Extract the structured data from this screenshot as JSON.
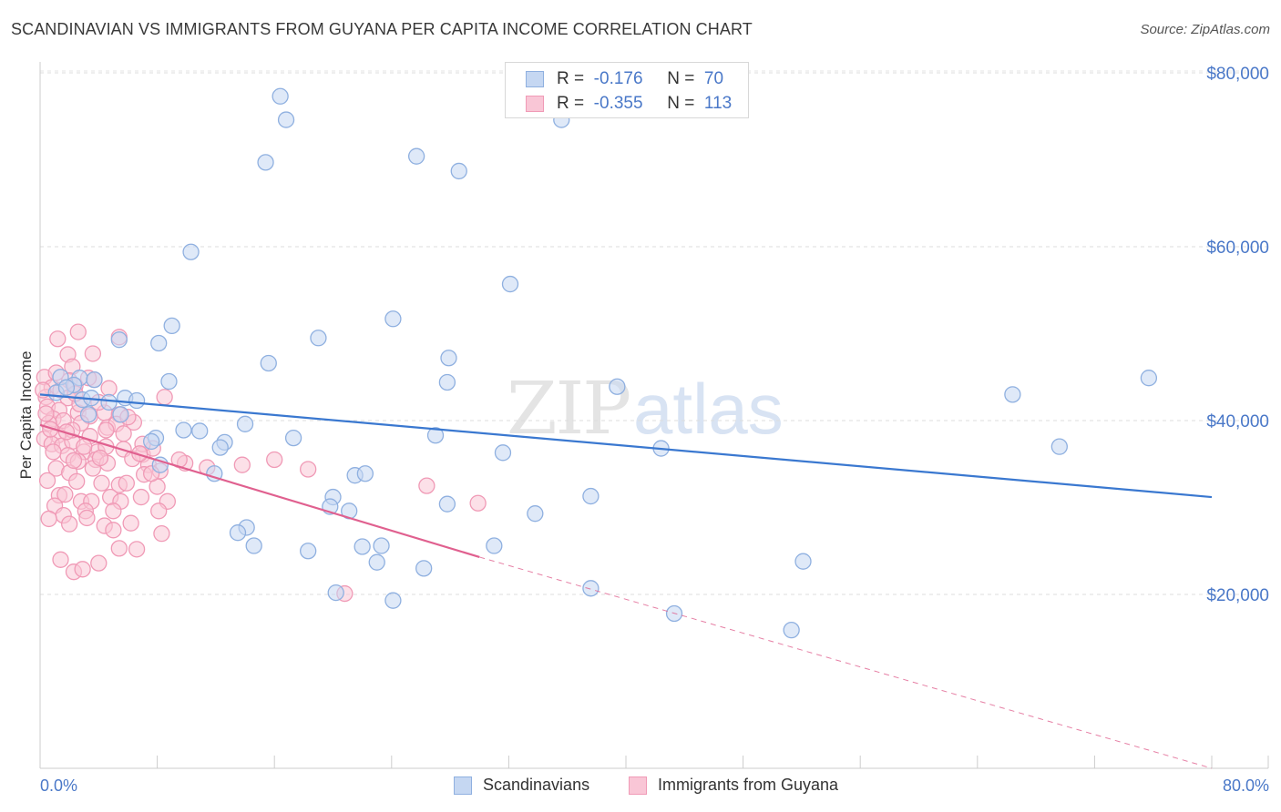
{
  "title": "SCANDINAVIAN VS IMMIGRANTS FROM GUYANA PER CAPITA INCOME CORRELATION CHART",
  "source": "Source: ZipAtlas.com",
  "watermark": {
    "zip": "ZIP",
    "atlas": "atlas"
  },
  "legend": {
    "r_label": "R =",
    "n_label": "N =",
    "rows": [
      {
        "r": "-0.176",
        "n": "70",
        "fill": "#c5d7f2",
        "stroke": "#8fb0e0"
      },
      {
        "r": "-0.355",
        "n": "113",
        "fill": "#f9c6d6",
        "stroke": "#f09ab6"
      }
    ]
  },
  "chart_data": {
    "type": "scatter",
    "title": "SCANDINAVIAN VS IMMIGRANTS FROM GUYANA PER CAPITA INCOME CORRELATION CHART",
    "xlabel": "",
    "ylabel": "Per Capita Income",
    "xlim": [
      0,
      80
    ],
    "ylim": [
      0,
      82000
    ],
    "x_tick_labels": [
      "0.0%",
      "80.0%"
    ],
    "y_ticks": [
      20000,
      40000,
      60000,
      80000
    ],
    "y_tick_labels": [
      "$20,000",
      "$40,000",
      "$60,000",
      "$80,000"
    ],
    "grid": true,
    "series": [
      {
        "name": "Scandinavians",
        "color": "#3a78d0",
        "fill": "#c5d7f2",
        "stroke": "#8fb0e0",
        "R": -0.176,
        "N": 70,
        "trend": {
          "x": [
            0,
            80
          ],
          "y": [
            43000,
            31200
          ],
          "dashed_beyond": null
        },
        "points": [
          [
            16.4,
            77300
          ],
          [
            16.8,
            74600
          ],
          [
            15.4,
            69700
          ],
          [
            25.7,
            70400
          ],
          [
            28.6,
            68700
          ],
          [
            35.6,
            74600
          ],
          [
            10.3,
            59400
          ],
          [
            32.1,
            55700
          ],
          [
            9.0,
            50900
          ],
          [
            24.1,
            51700
          ],
          [
            19.0,
            49500
          ],
          [
            8.1,
            48900
          ],
          [
            5.4,
            49300
          ],
          [
            15.6,
            46600
          ],
          [
            27.9,
            47200
          ],
          [
            1.4,
            45000
          ],
          [
            2.7,
            44900
          ],
          [
            3.7,
            44700
          ],
          [
            5.8,
            42600
          ],
          [
            2.3,
            44100
          ],
          [
            8.8,
            44500
          ],
          [
            27.8,
            44400
          ],
          [
            39.4,
            43900
          ],
          [
            66.4,
            43000
          ],
          [
            75.7,
            44900
          ],
          [
            1.1,
            43200
          ],
          [
            2.9,
            42400
          ],
          [
            4.7,
            42100
          ],
          [
            6.6,
            42300
          ],
          [
            3.3,
            40700
          ],
          [
            5.5,
            40700
          ],
          [
            10.9,
            38800
          ],
          [
            9.8,
            38900
          ],
          [
            7.9,
            38000
          ],
          [
            17.3,
            38000
          ],
          [
            14.0,
            39600
          ],
          [
            27.0,
            38300
          ],
          [
            7.6,
            37600
          ],
          [
            12.6,
            37500
          ],
          [
            12.3,
            36900
          ],
          [
            31.6,
            36300
          ],
          [
            42.4,
            36800
          ],
          [
            69.6,
            37000
          ],
          [
            8.2,
            34900
          ],
          [
            11.9,
            33900
          ],
          [
            21.5,
            33700
          ],
          [
            22.2,
            33900
          ],
          [
            20.0,
            31200
          ],
          [
            19.8,
            30100
          ],
          [
            27.8,
            30400
          ],
          [
            37.6,
            31300
          ],
          [
            21.1,
            29600
          ],
          [
            33.8,
            29300
          ],
          [
            14.1,
            27700
          ],
          [
            13.5,
            27100
          ],
          [
            14.6,
            25600
          ],
          [
            18.3,
            25000
          ],
          [
            22.0,
            25500
          ],
          [
            23.3,
            25600
          ],
          [
            31.0,
            25600
          ],
          [
            26.2,
            23000
          ],
          [
            23.0,
            23700
          ],
          [
            52.1,
            23800
          ],
          [
            20.2,
            20200
          ],
          [
            24.1,
            19300
          ],
          [
            37.6,
            20700
          ],
          [
            43.3,
            17800
          ],
          [
            51.3,
            15900
          ],
          [
            3.5,
            42600
          ],
          [
            1.8,
            43800
          ]
        ]
      },
      {
        "name": "Immigrants from Guyana",
        "color": "#e0608f",
        "fill": "#f9c6d6",
        "stroke": "#f09ab6",
        "R": -0.355,
        "N": 113,
        "trend": {
          "x": [
            0,
            30
          ],
          "y": [
            39500,
            24300
          ],
          "dashed_to": {
            "x": 80,
            "y": 0
          }
        },
        "points": [
          [
            2.6,
            50200
          ],
          [
            1.2,
            49400
          ],
          [
            5.4,
            49600
          ],
          [
            1.9,
            47600
          ],
          [
            3.6,
            47700
          ],
          [
            2.2,
            46200
          ],
          [
            0.3,
            45000
          ],
          [
            2.0,
            44600
          ],
          [
            3.7,
            44700
          ],
          [
            2.4,
            44000
          ],
          [
            0.8,
            43800
          ],
          [
            0.4,
            42700
          ],
          [
            1.4,
            43500
          ],
          [
            1.9,
            42600
          ],
          [
            8.5,
            42700
          ],
          [
            0.5,
            41600
          ],
          [
            1.3,
            41200
          ],
          [
            2.6,
            40900
          ],
          [
            3.4,
            40500
          ],
          [
            4.4,
            40900
          ],
          [
            5.4,
            40700
          ],
          [
            0.9,
            40200
          ],
          [
            1.6,
            40000
          ],
          [
            0.6,
            39700
          ],
          [
            2.8,
            39700
          ],
          [
            4.6,
            39200
          ],
          [
            5.2,
            39600
          ],
          [
            1.2,
            38300
          ],
          [
            3.4,
            38200
          ],
          [
            5.7,
            38500
          ],
          [
            0.3,
            37900
          ],
          [
            0.8,
            37300
          ],
          [
            1.5,
            37100
          ],
          [
            2.2,
            37600
          ],
          [
            3.0,
            36400
          ],
          [
            3.9,
            36400
          ],
          [
            4.5,
            37000
          ],
          [
            5.7,
            36700
          ],
          [
            7.0,
            36100
          ],
          [
            7.7,
            36800
          ],
          [
            1.9,
            36000
          ],
          [
            2.6,
            35300
          ],
          [
            3.8,
            35500
          ],
          [
            4.6,
            35100
          ],
          [
            6.3,
            35600
          ],
          [
            7.4,
            34900
          ],
          [
            8.2,
            34200
          ],
          [
            9.9,
            35100
          ],
          [
            1.1,
            34500
          ],
          [
            2.0,
            34000
          ],
          [
            2.5,
            33000
          ],
          [
            4.2,
            32800
          ],
          [
            5.4,
            32600
          ],
          [
            7.1,
            33800
          ],
          [
            9.5,
            35500
          ],
          [
            11.4,
            34600
          ],
          [
            26.4,
            32500
          ],
          [
            1.3,
            31400
          ],
          [
            2.8,
            30700
          ],
          [
            3.5,
            30700
          ],
          [
            4.8,
            31200
          ],
          [
            5.5,
            30700
          ],
          [
            8.0,
            32400
          ],
          [
            8.7,
            30700
          ],
          [
            1.0,
            30200
          ],
          [
            1.6,
            29100
          ],
          [
            3.1,
            29600
          ],
          [
            5.0,
            29600
          ],
          [
            0.6,
            28700
          ],
          [
            2.0,
            28100
          ],
          [
            3.2,
            28800
          ],
          [
            4.4,
            27900
          ],
          [
            5.0,
            27400
          ],
          [
            6.2,
            28200
          ],
          [
            8.3,
            27000
          ],
          [
            1.4,
            24000
          ],
          [
            4.0,
            23600
          ],
          [
            5.4,
            25300
          ],
          [
            6.6,
            25200
          ],
          [
            2.3,
            22600
          ],
          [
            2.9,
            22900
          ],
          [
            20.8,
            20100
          ],
          [
            7.6,
            33900
          ],
          [
            6.9,
            31200
          ],
          [
            1.7,
            31500
          ],
          [
            3.6,
            34500
          ],
          [
            0.7,
            39000
          ],
          [
            2.2,
            38900
          ],
          [
            6.4,
            39800
          ],
          [
            4.0,
            42100
          ],
          [
            1.1,
            45500
          ],
          [
            3.3,
            44900
          ],
          [
            4.7,
            43700
          ],
          [
            0.9,
            36400
          ],
          [
            2.3,
            35400
          ],
          [
            7.0,
            37300
          ],
          [
            16.0,
            35500
          ],
          [
            18.3,
            34400
          ],
          [
            13.8,
            34900
          ],
          [
            29.9,
            30500
          ],
          [
            0.5,
            33100
          ],
          [
            2.7,
            41900
          ],
          [
            4.5,
            38900
          ],
          [
            6.0,
            40400
          ],
          [
            0.2,
            43500
          ],
          [
            1.8,
            38700
          ],
          [
            3.0,
            37000
          ],
          [
            4.1,
            35700
          ],
          [
            5.9,
            32800
          ],
          [
            6.8,
            36200
          ],
          [
            8.1,
            29600
          ],
          [
            0.4,
            40800
          ],
          [
            2.4,
            43100
          ]
        ]
      }
    ]
  }
}
